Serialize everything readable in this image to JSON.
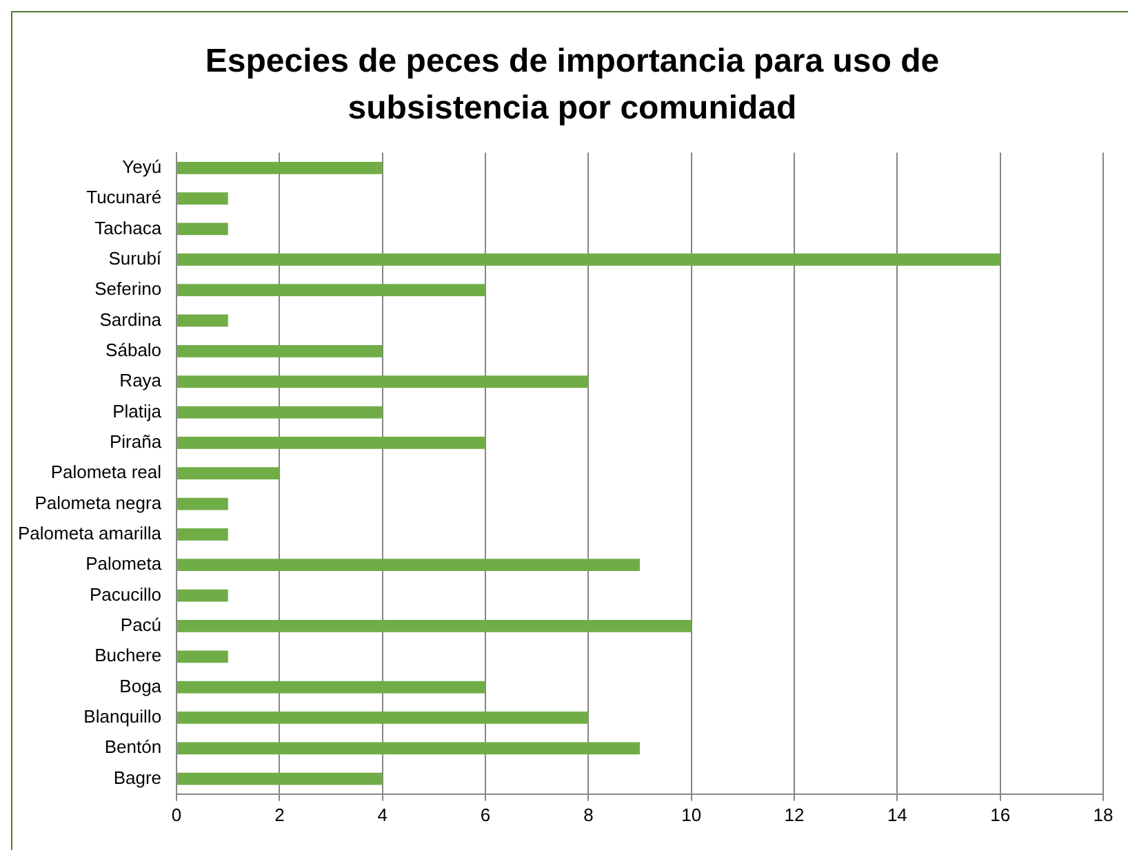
{
  "chart_data": {
    "type": "bar",
    "orientation": "horizontal",
    "title": "Especies de peces de importancia para uso de subsistencia por comunidad",
    "categories": [
      "Yeyú",
      "Tucunaré",
      "Tachaca",
      "Surubí",
      "Seferino",
      "Sardina",
      "Sábalo",
      "Raya",
      "Platija",
      "Piraña",
      "Palometa real",
      "Palometa negra",
      "Palometa amarilla",
      "Palometa",
      "Pacucillo",
      "Pacú",
      "Buchere",
      "Boga",
      "Blanquillo",
      "Bentón",
      "Bagre"
    ],
    "values": [
      4,
      1,
      1,
      16,
      6,
      1,
      4,
      8,
      4,
      6,
      2,
      1,
      1,
      9,
      1,
      10,
      1,
      6,
      8,
      9,
      4
    ],
    "color": "#70ad47",
    "xlim": [
      0,
      18
    ],
    "xticks": [
      0,
      2,
      4,
      6,
      8,
      10,
      12,
      14,
      16,
      18
    ],
    "grid": "x",
    "legend": false
  }
}
